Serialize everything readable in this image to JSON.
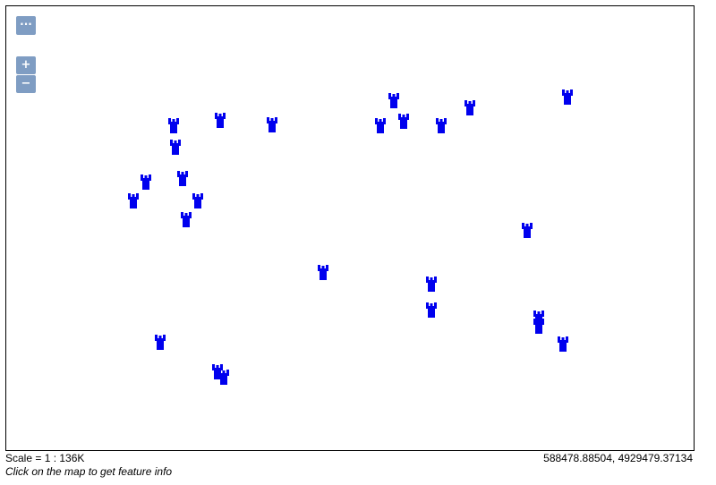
{
  "map": {
    "controls": {
      "layers_label": "···",
      "zoom_in_label": "+",
      "zoom_out_label": "−"
    },
    "marker_color": "#0000ee",
    "marker_icon": "castle-icon",
    "marker_count": 28
  },
  "footer": {
    "scale_text": "Scale = 1 : 136K",
    "coords_text": "588478.88504, 4929479.37134",
    "hint_text": "Click on the map to get feature info"
  }
}
